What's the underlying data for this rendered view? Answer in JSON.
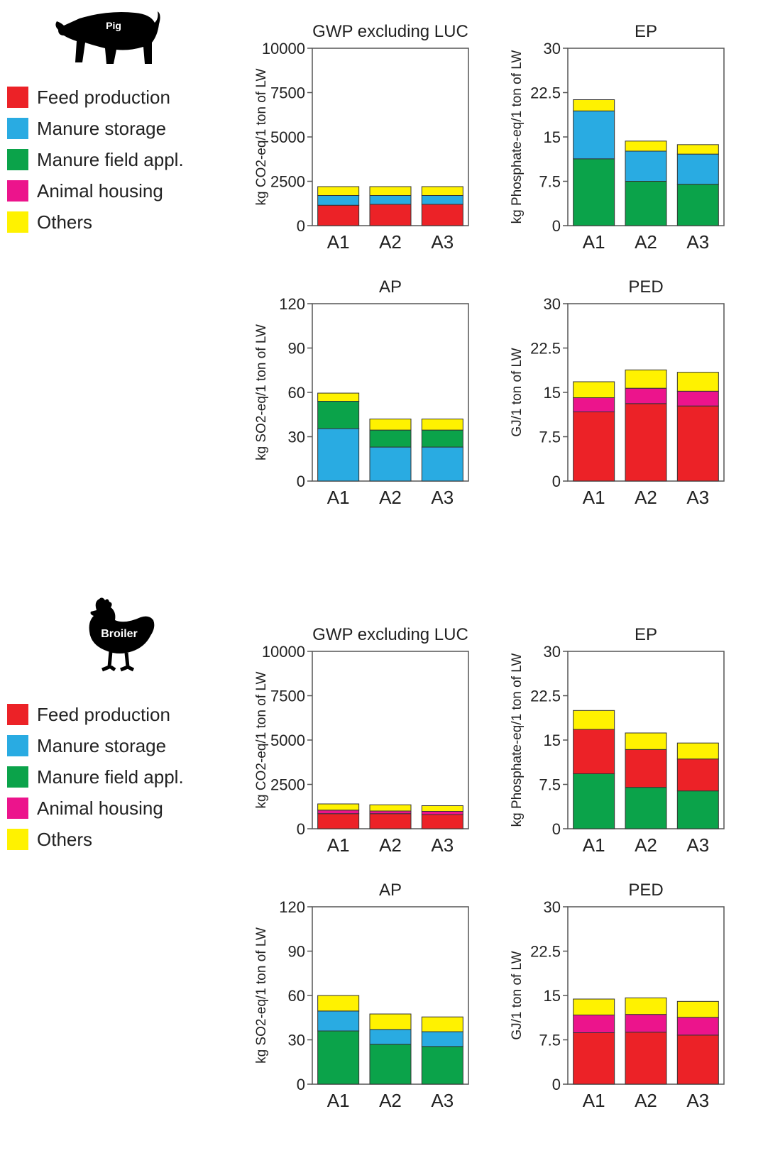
{
  "colors": {
    "Feed production": "#ec2227",
    "Manure storage": "#29abe2",
    "Manure field appl.": "#0ba34a",
    "Animal housing": "#ec148c",
    "Others": "#fff200"
  },
  "blocks": [
    {
      "animal_label": "Pig",
      "animal_icon": "pig-silhouette-icon",
      "legend": [
        "Feed production",
        "Manure storage",
        "Manure field appl.",
        "Animal housing",
        "Others"
      ]
    },
    {
      "animal_label": "Broiler",
      "animal_icon": "chicken-silhouette-icon",
      "legend": [
        "Feed production",
        "Manure storage",
        "Manure field appl.",
        "Animal housing",
        "Others"
      ]
    }
  ],
  "chart_data": [
    {
      "type": "bar",
      "stacked": true,
      "group": "Pig",
      "title": "GWP excluding LUC",
      "ylabel": "kg CO2-eq/1 ton of LW",
      "ylim": [
        0,
        10000
      ],
      "yticks": [
        "0",
        "2500",
        "5000",
        "7500",
        "10000"
      ],
      "categories": [
        "A1",
        "A2",
        "A3"
      ],
      "series": [
        {
          "name": "Feed production",
          "values": [
            1150,
            1200,
            1200
          ]
        },
        {
          "name": "Manure storage",
          "values": [
            550,
            500,
            500
          ]
        },
        {
          "name": "Others",
          "values": [
            500,
            500,
            500
          ]
        }
      ]
    },
    {
      "type": "bar",
      "stacked": true,
      "group": "Pig",
      "title": "EP",
      "ylabel": "kg Phosphate-eq/1 ton of LW",
      "ylim": [
        0,
        30
      ],
      "yticks": [
        "0",
        "7.5",
        "15",
        "22.5",
        "30"
      ],
      "categories": [
        "A1",
        "A2",
        "A3"
      ],
      "series": [
        {
          "name": "Manure field appl.",
          "values": [
            11.3,
            7.5,
            7.0
          ]
        },
        {
          "name": "Manure storage",
          "values": [
            8.1,
            5.1,
            5.1
          ]
        },
        {
          "name": "Others",
          "values": [
            1.9,
            1.7,
            1.6
          ]
        }
      ]
    },
    {
      "type": "bar",
      "stacked": true,
      "group": "Pig",
      "title": "AP",
      "ylabel": "kg SO2-eq/1 ton of LW",
      "ylim": [
        0,
        120
      ],
      "yticks": [
        "0",
        "30",
        "60",
        "90",
        "120"
      ],
      "categories": [
        "A1",
        "A2",
        "A3"
      ],
      "series": [
        {
          "name": "Manure storage",
          "values": [
            35.5,
            23,
            23
          ]
        },
        {
          "name": "Manure field appl.",
          "values": [
            18.5,
            11.5,
            11.5
          ]
        },
        {
          "name": "Others",
          "values": [
            5.5,
            7.5,
            7.5
          ]
        }
      ]
    },
    {
      "type": "bar",
      "stacked": true,
      "group": "Pig",
      "title": "PED",
      "ylabel": "GJ/1 ton of LW",
      "ylim": [
        0,
        30
      ],
      "yticks": [
        "0",
        "7.5",
        "15",
        "22.5",
        "30"
      ],
      "categories": [
        "A1",
        "A2",
        "A3"
      ],
      "series": [
        {
          "name": "Feed production",
          "values": [
            11.7,
            13.1,
            12.7
          ]
        },
        {
          "name": "Animal housing",
          "values": [
            2.4,
            2.6,
            2.5
          ]
        },
        {
          "name": "Others",
          "values": [
            2.7,
            3.1,
            3.2
          ]
        }
      ]
    },
    {
      "type": "bar",
      "stacked": true,
      "group": "Broiler",
      "title": "GWP excluding LUC",
      "ylabel": "kg CO2-eq/1 ton of LW",
      "ylim": [
        0,
        10000
      ],
      "yticks": [
        "0",
        "2500",
        "5000",
        "7500",
        "10000"
      ],
      "categories": [
        "A1",
        "A2",
        "A3"
      ],
      "series": [
        {
          "name": "Feed production",
          "values": [
            850,
            850,
            800
          ]
        },
        {
          "name": "Animal housing",
          "values": [
            200,
            150,
            180
          ]
        },
        {
          "name": "Others",
          "values": [
            350,
            350,
            320
          ]
        }
      ]
    },
    {
      "type": "bar",
      "stacked": true,
      "group": "Broiler",
      "title": "EP",
      "ylabel": "kg Phosphate-eq/1 ton of LW",
      "ylim": [
        0,
        30
      ],
      "yticks": [
        "0",
        "7.5",
        "15",
        "22.5",
        "30"
      ],
      "categories": [
        "A1",
        "A2",
        "A3"
      ],
      "series": [
        {
          "name": "Manure field appl.",
          "values": [
            9.3,
            7.0,
            6.4
          ]
        },
        {
          "name": "Feed production",
          "values": [
            7.5,
            6.4,
            5.4
          ]
        },
        {
          "name": "Others",
          "values": [
            3.2,
            2.8,
            2.7
          ]
        }
      ]
    },
    {
      "type": "bar",
      "stacked": true,
      "group": "Broiler",
      "title": "AP",
      "ylabel": "kg SO2-eq/1 ton of LW",
      "ylim": [
        0,
        120
      ],
      "yticks": [
        "0",
        "30",
        "60",
        "90",
        "120"
      ],
      "categories": [
        "A1",
        "A2",
        "A3"
      ],
      "series": [
        {
          "name": "Manure field appl.",
          "values": [
            36,
            27,
            25.5
          ]
        },
        {
          "name": "Manure storage",
          "values": [
            13.5,
            10,
            10
          ]
        },
        {
          "name": "Others",
          "values": [
            10.5,
            10.5,
            10
          ]
        }
      ]
    },
    {
      "type": "bar",
      "stacked": true,
      "group": "Broiler",
      "title": "PED",
      "ylabel": "GJ/1 ton of LW",
      "ylim": [
        0,
        30
      ],
      "yticks": [
        "0",
        "7.5",
        "15",
        "22.5",
        "30"
      ],
      "categories": [
        "A1",
        "A2",
        "A3"
      ],
      "series": [
        {
          "name": "Feed production",
          "values": [
            8.7,
            8.8,
            8.3
          ]
        },
        {
          "name": "Animal housing",
          "values": [
            3.0,
            3.0,
            3.0
          ]
        },
        {
          "name": "Others",
          "values": [
            2.7,
            2.8,
            2.7
          ]
        }
      ]
    }
  ]
}
